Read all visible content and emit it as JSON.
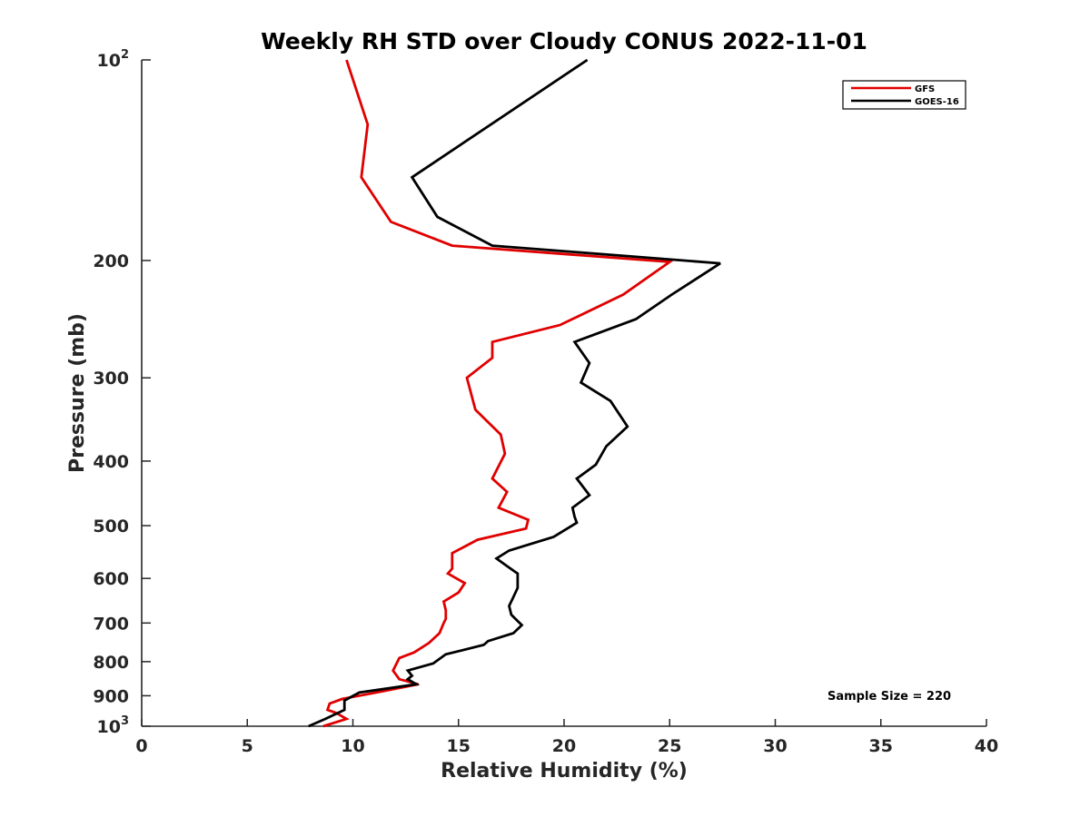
{
  "chart_data": {
    "type": "line",
    "title": "Weekly RH STD over Cloudy CONUS 2022-11-01",
    "xlabel": "Relative Humidity (%)",
    "ylabel": "Pressure (mb)",
    "xlim": [
      0,
      40
    ],
    "ylim": [
      100,
      1000
    ],
    "y_scale": "log",
    "y_reversed": true,
    "grid": false,
    "legend_position": "top-right",
    "x_ticks": [
      0,
      5,
      10,
      15,
      20,
      25,
      30,
      35,
      40
    ],
    "y_ticks": [
      {
        "value": 100,
        "base": "10",
        "exp": "2"
      },
      {
        "value": 200,
        "label": "200"
      },
      {
        "value": 300,
        "label": "300"
      },
      {
        "value": 400,
        "label": "400"
      },
      {
        "value": 500,
        "label": "500"
      },
      {
        "value": 600,
        "label": "600"
      },
      {
        "value": 700,
        "label": "700"
      },
      {
        "value": 800,
        "label": "800"
      },
      {
        "value": 900,
        "label": "900"
      },
      {
        "value": 1000,
        "base": "10",
        "exp": "3"
      }
    ],
    "series": [
      {
        "name": "GFS",
        "color": "#e00000",
        "points": [
          [
            9.7,
            100
          ],
          [
            10.7,
            125
          ],
          [
            10.4,
            150
          ],
          [
            11.8,
            175
          ],
          [
            14.7,
            190
          ],
          [
            25.0,
            201
          ],
          [
            22.8,
            225
          ],
          [
            19.8,
            250
          ],
          [
            16.6,
            265
          ],
          [
            16.6,
            280
          ],
          [
            15.4,
            300
          ],
          [
            15.8,
            335
          ],
          [
            17.0,
            365
          ],
          [
            17.2,
            390
          ],
          [
            16.6,
            425
          ],
          [
            17.3,
            445
          ],
          [
            16.9,
            470
          ],
          [
            18.3,
            490
          ],
          [
            18.2,
            505
          ],
          [
            15.9,
            525
          ],
          [
            14.7,
            550
          ],
          [
            14.7,
            580
          ],
          [
            14.5,
            590
          ],
          [
            15.3,
            610
          ],
          [
            15.0,
            630
          ],
          [
            14.3,
            650
          ],
          [
            14.4,
            670
          ],
          [
            14.4,
            690
          ],
          [
            14.3,
            700
          ],
          [
            14.1,
            725
          ],
          [
            13.6,
            750
          ],
          [
            12.9,
            775
          ],
          [
            12.2,
            790
          ],
          [
            11.9,
            825
          ],
          [
            12.2,
            850
          ],
          [
            13.1,
            865
          ],
          [
            11.1,
            890
          ],
          [
            9.5,
            910
          ],
          [
            8.9,
            925
          ],
          [
            8.8,
            945
          ],
          [
            9.2,
            955
          ],
          [
            9.7,
            975
          ],
          [
            8.6,
            1000
          ]
        ]
      },
      {
        "name": "GOES-16",
        "color": "#000000",
        "points": [
          [
            21.1,
            100
          ],
          [
            12.8,
            150
          ],
          [
            14.0,
            172
          ],
          [
            16.6,
            190
          ],
          [
            27.4,
            202
          ],
          [
            25.1,
            225
          ],
          [
            23.4,
            245
          ],
          [
            20.5,
            265
          ],
          [
            21.2,
            285
          ],
          [
            20.8,
            305
          ],
          [
            22.2,
            325
          ],
          [
            23.0,
            355
          ],
          [
            22.0,
            380
          ],
          [
            21.5,
            405
          ],
          [
            20.6,
            425
          ],
          [
            21.2,
            450
          ],
          [
            20.4,
            470
          ],
          [
            20.5,
            485
          ],
          [
            20.6,
            495
          ],
          [
            19.5,
            520
          ],
          [
            17.4,
            545
          ],
          [
            16.8,
            560
          ],
          [
            17.3,
            575
          ],
          [
            17.8,
            590
          ],
          [
            17.8,
            620
          ],
          [
            17.6,
            640
          ],
          [
            17.4,
            660
          ],
          [
            17.5,
            680
          ],
          [
            17.7,
            690
          ],
          [
            18.0,
            705
          ],
          [
            17.6,
            725
          ],
          [
            16.4,
            745
          ],
          [
            16.2,
            755
          ],
          [
            14.4,
            780
          ],
          [
            13.8,
            805
          ],
          [
            12.6,
            825
          ],
          [
            12.8,
            840
          ],
          [
            12.6,
            850
          ],
          [
            13.0,
            865
          ],
          [
            10.3,
            890
          ],
          [
            9.6,
            915
          ],
          [
            9.6,
            945
          ],
          [
            8.7,
            975
          ],
          [
            7.9,
            1000
          ]
        ]
      }
    ],
    "annotations": [
      {
        "text": "Sample Size = 220",
        "x": 33.0,
        "y": 900
      }
    ]
  }
}
